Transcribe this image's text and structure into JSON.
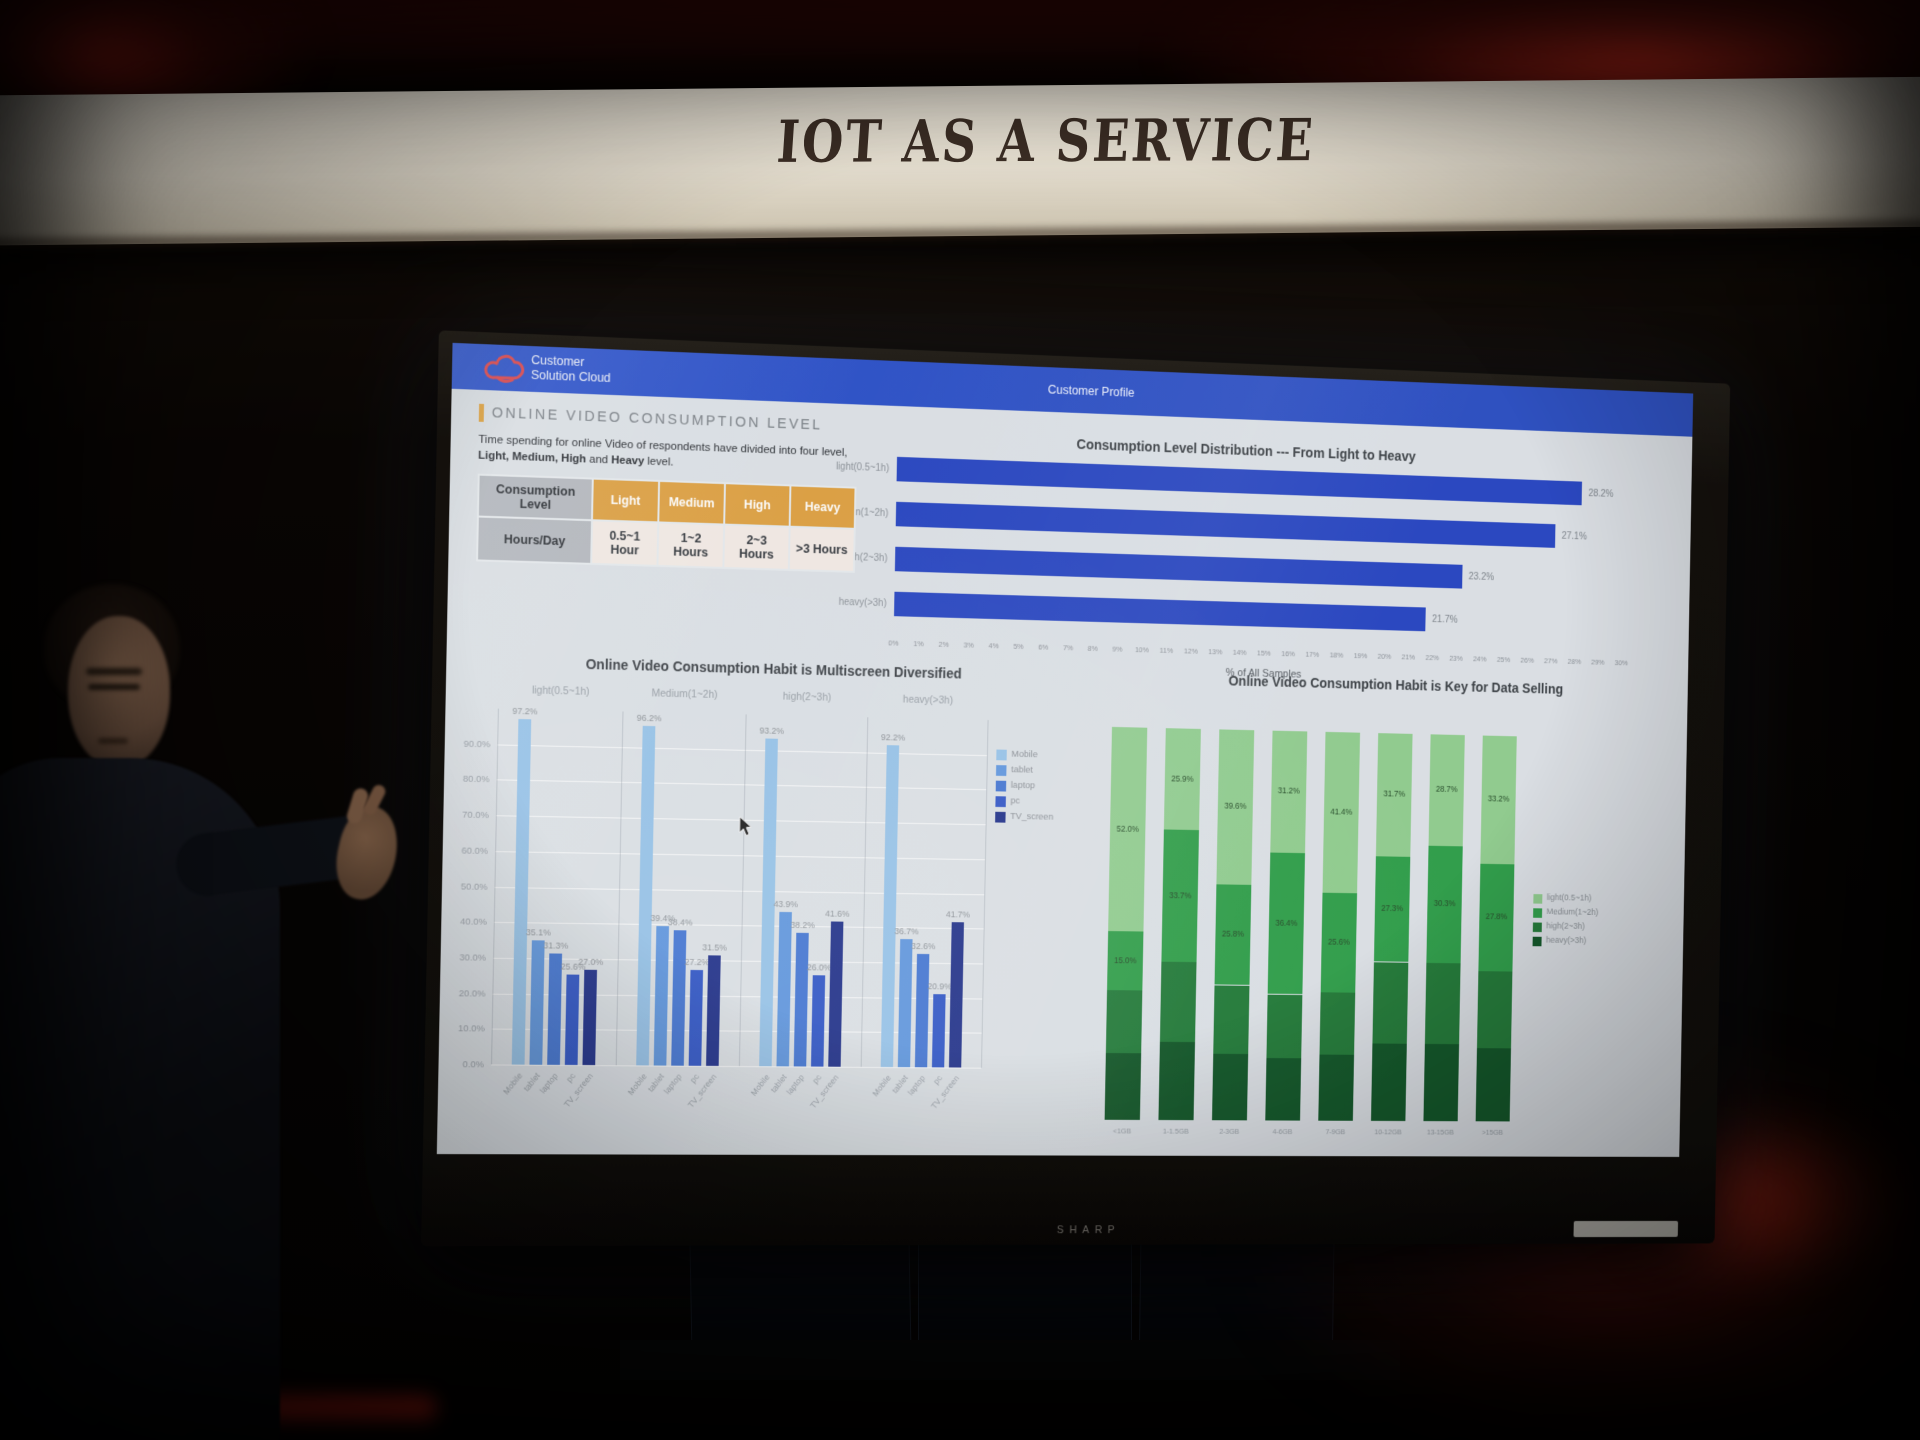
{
  "scene": {
    "wall_text": "IOT AS A SERVICE",
    "tv_bezel_text": "SHARP"
  },
  "dashboard": {
    "header": {
      "logo_line1": "Customer",
      "logo_line2": "Solution Cloud",
      "center_title": "Customer Profile"
    },
    "info_panel": {
      "title": "ONLINE VIDEO CONSUMPTION LEVEL",
      "description_segments": [
        {
          "text": "Time spending for online Video of respondents have divided into four level,",
          "bold": false
        },
        {
          "text": " Light, Medium, High",
          "bold": true
        },
        {
          "text": " and ",
          "bold": false
        },
        {
          "text": "Heavy",
          "bold": true
        },
        {
          "text": " level.",
          "bold": false
        }
      ],
      "table": {
        "row1": [
          "Consumption Level",
          "Light",
          "Medium",
          "High",
          "Heavy"
        ],
        "row2": [
          "Hours/Day",
          "0.5~1 Hour",
          "1~2 Hours",
          "2~3 Hours",
          ">3 Hours"
        ]
      }
    }
  },
  "chart_data": [
    {
      "type": "bar",
      "orientation": "horizontal",
      "title": "Consumption Level Distribution --- From Light to Heavy",
      "categories": [
        "light(0.5~1h)",
        "Medium(1~2h)",
        "high(2~3h)",
        "heavy(>3h)"
      ],
      "values": [
        28.2,
        27.1,
        23.2,
        21.7
      ],
      "value_labels": [
        "28.2%",
        "27.1%",
        "23.2%",
        "21.7%"
      ],
      "xlabel": "% of All Samples",
      "xlim": [
        0,
        30
      ],
      "x_tick_step": 1,
      "bar_color": "#2646cb",
      "grid": false,
      "legend_position": "none"
    },
    {
      "type": "bar",
      "orientation": "vertical-grouped",
      "title": "Online Video Consumption Habit is Multiscreen Diversified",
      "group_labels": [
        "light(0.5~1h)",
        "Medium(1~2h)",
        "high(2~3h)",
        "heavy(>3h)"
      ],
      "categories": [
        "Mobile",
        "tablet",
        "laptop",
        "pc",
        "TV_screen"
      ],
      "series": [
        {
          "name": "Mobile",
          "color": "#93c4ec",
          "values": [
            97.2,
            96.2,
            93.2,
            92.2
          ]
        },
        {
          "name": "tablet",
          "color": "#5b96e4",
          "values": [
            35.1,
            39.4,
            43.9,
            36.7
          ]
        },
        {
          "name": "laptop",
          "color": "#3f75da",
          "values": [
            31.3,
            38.4,
            38.2,
            32.6
          ]
        },
        {
          "name": "pc",
          "color": "#2c55cf",
          "values": [
            25.6,
            27.2,
            26.0,
            20.9
          ]
        },
        {
          "name": "TV_screen",
          "color": "#1d2f90",
          "values": [
            27.0,
            31.5,
            41.6,
            41.7
          ]
        }
      ],
      "ylim": [
        0,
        100
      ],
      "y_tick_step": 10,
      "grid": true,
      "legend_position": "right"
    },
    {
      "type": "bar",
      "orientation": "vertical-stacked-100",
      "title": "Online Video Consumption Habit is Key for Data Selling",
      "categories": [
        "<1GB",
        "1-1.5GB",
        "2-3GB",
        "4-6GB",
        "7-9GB",
        "10-12GB",
        "13-15GB",
        ">15GB"
      ],
      "series": [
        {
          "name": "light(0.5~1h)",
          "color": "#8ecf8c",
          "values": [
            52.0,
            25.9,
            39.6,
            31.2,
            41.4,
            31.7,
            28.7,
            33.2
          ]
        },
        {
          "name": "Medium(1~2h)",
          "color": "#2aa146",
          "values": [
            15.0,
            33.7,
            25.8,
            36.4,
            25.6,
            27.3,
            30.3,
            27.8
          ]
        },
        {
          "name": "high(2~3h)",
          "color": "#1e7d36",
          "values": [
            16.0,
            20.4,
            17.6,
            16.4,
            16.0,
            21.0,
            21.0,
            20.0
          ]
        },
        {
          "name": "heavy(>3h)",
          "color": "#0e5826",
          "values": [
            17.0,
            20.0,
            17.0,
            16.0,
            17.0,
            20.0,
            20.0,
            19.0
          ]
        }
      ],
      "ylim": [
        0,
        100
      ],
      "grid": false,
      "legend_position": "right"
    }
  ]
}
